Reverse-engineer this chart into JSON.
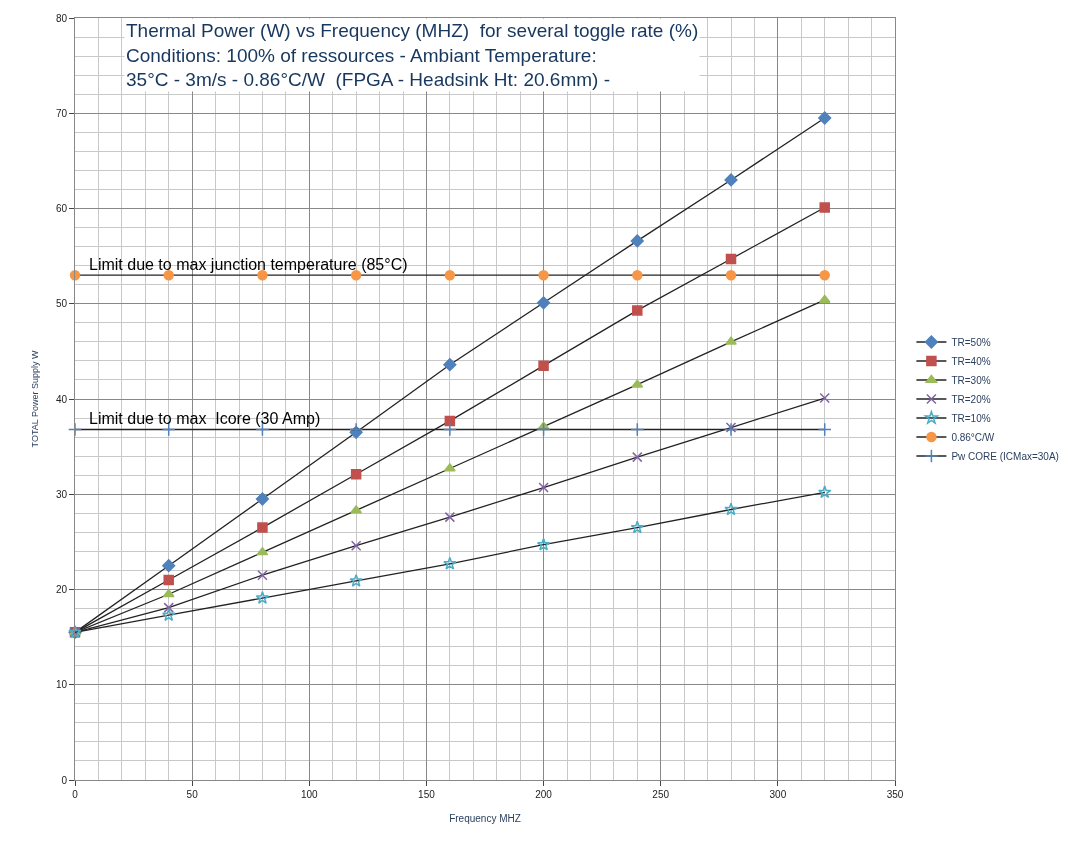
{
  "chart_data": {
    "type": "line",
    "title": "Thermal Power (W) vs Frequency (MHZ)  for several toggle rate (%)\nConditions: 100% of ressources - Ambiant Temperature:\n35°C - 3m/s - 0.86°C/W  (FPGA - Headsink Ht: 20.6mm) -",
    "xlabel": "Frequency MHZ",
    "ylabel": "TOTAL Power Supply W",
    "x": [
      0,
      40,
      80,
      120,
      160,
      200,
      240,
      280,
      320
    ],
    "series": [
      {
        "name": "TR=50%",
        "color": "#4f81bd",
        "marker": "diamond",
        "values": [
          15.5,
          22.5,
          29.5,
          36.5,
          43.6,
          50.1,
          56.6,
          63.0,
          69.5
        ]
      },
      {
        "name": "TR=40%",
        "color": "#c0504d",
        "marker": "square",
        "values": [
          15.5,
          21.0,
          26.5,
          32.1,
          37.7,
          43.5,
          49.3,
          54.7,
          60.1
        ]
      },
      {
        "name": "TR=30%",
        "color": "#9bbb59",
        "marker": "triangle",
        "values": [
          15.5,
          19.5,
          23.9,
          28.3,
          32.7,
          37.1,
          41.5,
          46.0,
          50.4
        ]
      },
      {
        "name": "TR=20%",
        "color": "#8064a2",
        "marker": "cross",
        "values": [
          15.5,
          18.1,
          21.5,
          24.6,
          27.6,
          30.7,
          33.9,
          37.0,
          40.1
        ]
      },
      {
        "name": "TR=10%",
        "color": "#4bacc6",
        "marker": "star",
        "values": [
          15.5,
          17.3,
          19.1,
          20.9,
          22.7,
          24.7,
          26.5,
          28.4,
          30.2
        ]
      },
      {
        "name": "0.86°C/W",
        "color": "#f79646",
        "marker": "circle",
        "values": [
          53,
          53,
          53,
          53,
          53,
          53,
          53,
          53,
          53
        ]
      },
      {
        "name": "Pw CORE (ICMax=30A)",
        "color": "#4f81bd",
        "marker": "plus",
        "values": [
          36.8,
          36.8,
          36.8,
          36.8,
          36.8,
          36.8,
          36.8,
          36.8,
          36.8
        ]
      }
    ],
    "annotations": [
      {
        "text": "Limit due to max junction temperature (85°C)",
        "x": 5,
        "y": 53
      },
      {
        "text": "Limit due to max  Icore (30 Amp)",
        "x": 5,
        "y": 36.8
      }
    ],
    "xlim": [
      0,
      350
    ],
    "xticks": [
      0,
      50,
      100,
      150,
      200,
      250,
      300,
      350
    ],
    "ylim": [
      0,
      80
    ],
    "yticks": [
      0,
      10,
      20,
      30,
      40,
      50,
      60,
      70,
      80
    ],
    "grid": true,
    "legend": "right",
    "line_style": "solid"
  }
}
